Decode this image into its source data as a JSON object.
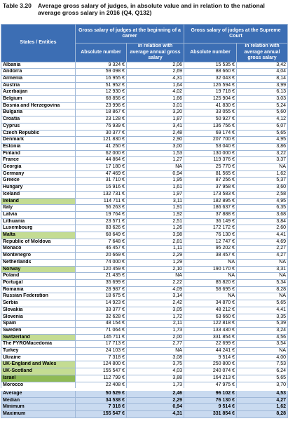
{
  "header": {
    "label": "Table 3.20",
    "title": "Average gross salary of judges, in absolute value and in relation to the national average gross salary in 2016 (Q4, Q132)"
  },
  "table": {
    "columns": {
      "entity": "States / Entities",
      "group1": "Gross salary of judges at the beginning of a career",
      "group2": "Gross salary of judges at the Supreme Court",
      "abs1": "Absolute number",
      "rel1": "in relation with average annual gross salary",
      "abs2": "Absolute number",
      "rel2": "in relation with average annual gross salary"
    },
    "rows": [
      [
        "Albania",
        "9 324 €",
        "2,06",
        "15 535 €",
        "3,42"
      ],
      [
        "Andorra",
        "59 098 €",
        "2,69",
        "88 660 €",
        "4,04"
      ],
      [
        "Armenia",
        "16 955 €",
        "4,31",
        "32 043 €",
        "8,14"
      ],
      [
        "Austria",
        "51 952 €",
        "1,64",
        "126 594 €",
        "3,99"
      ],
      [
        "Azerbaijan",
        "12 930 €",
        "4,02",
        "19 718 €",
        "6,13"
      ],
      [
        "Belgium",
        "68 856 €",
        "1,66",
        "125 904 €",
        "3,03"
      ],
      [
        "Bosnia and Herzegovina",
        "23 996 €",
        "3,01",
        "41 830 €",
        "5,24"
      ],
      [
        "Bulgaria",
        "18 867 €",
        "3,20",
        "33 055 €",
        "5,60"
      ],
      [
        "Croatia",
        "23 128 €",
        "1,87",
        "50 927 €",
        "4,12"
      ],
      [
        "Cyprus",
        "76 939 €",
        "3,41",
        "136 756 €",
        "6,07"
      ],
      [
        "Czech Republic",
        "30 377 €",
        "2,48",
        "69 174 €",
        "5,65"
      ],
      [
        "Denmark",
        "121 830 €",
        "2,90",
        "207 700 €",
        "4,95"
      ],
      [
        "Estonia",
        "41 250 €",
        "3,00",
        "53 040 €",
        "3,86"
      ],
      [
        "Finland",
        "62 000 €",
        "1,53",
        "130 000 €",
        "3,22"
      ],
      [
        "France",
        "44 864 €",
        "1,27",
        "119 376 €",
        "3,37"
      ],
      [
        "Georgia",
        "17 180 €",
        "NA",
        "25 770 €",
        "NA"
      ],
      [
        "Germany",
        "47 469 €",
        "0,94",
        "81 565 €",
        "1,62"
      ],
      [
        "Greece",
        "31 710 €",
        "1,95",
        "87 256 €",
        "5,37"
      ],
      [
        "Hungary",
        "16 916 €",
        "1,61",
        "37 958 €",
        "3,60"
      ],
      [
        "Iceland",
        "132 731 €",
        "1,97",
        "173 583 €",
        "2,58"
      ],
      [
        "Ireland",
        "114 711 €",
        "3,11",
        "182 895 €",
        "4,95"
      ],
      [
        "Italy",
        "56 263 €",
        "1,91",
        "186 637 €",
        "6,35"
      ],
      [
        "Latvia",
        "19 764 €",
        "1,92",
        "37 888 €",
        "3,68"
      ],
      [
        "Lithuania",
        "23 571 €",
        "2,51",
        "36 149 €",
        "3,84"
      ],
      [
        "Luxembourg",
        "83 626 €",
        "1,26",
        "172 172 €",
        "2,60"
      ],
      [
        "Malta",
        "68 649 €",
        "3,98",
        "76 130 €",
        "4,41"
      ],
      [
        "Republic of Moldova",
        "7 648 €",
        "2,81",
        "12 747 €",
        "4,69"
      ],
      [
        "Monaco",
        "46 457 €",
        "1,11",
        "95 202 €",
        "2,27"
      ],
      [
        "Montenegro",
        "20 669 €",
        "2,29",
        "38 457 €",
        "4,27"
      ],
      [
        "Netherlands",
        "74 000 €",
        "1,29",
        "NA",
        "NA"
      ],
      [
        "Norway",
        "120 459 €",
        "2,10",
        "190 170 €",
        "3,31"
      ],
      [
        "Poland",
        "21 435 €",
        "NA",
        "NA",
        "NA"
      ],
      [
        "Portugal",
        "35 699 €",
        "2,22",
        "85 820 €",
        "5,34"
      ],
      [
        "Romania",
        "28 987 €",
        "4,09",
        "58 695 €",
        "8,28"
      ],
      [
        "Russian Federation",
        "18 675 €",
        "3,14",
        "NA",
        "NA"
      ],
      [
        "Serbia",
        "14 923 €",
        "2,42",
        "34 870 €",
        "5,65"
      ],
      [
        "Slovakia",
        "33 377 €",
        "3,05",
        "48 212 €",
        "4,41"
      ],
      [
        "Slovenia",
        "32 628 €",
        "1,72",
        "63 660 €",
        "3,35"
      ],
      [
        "Spain",
        "48 154 €",
        "2,11",
        "122 818 €",
        "5,39"
      ],
      [
        "Sweden",
        "71 064 €",
        "1,73",
        "133 430 €",
        "3,24"
      ],
      [
        "Switzerland",
        "145 711 €",
        "2,00",
        "331 854 €",
        "4,56"
      ],
      [
        "The FYROMacedonia",
        "17 713 €",
        "2,77",
        "22 699 €",
        "3,54"
      ],
      [
        "Turkey",
        "24 103 €",
        "NA",
        "44 241 €",
        "NA"
      ],
      [
        "Ukraine",
        "7 318 €",
        "3,08",
        "9 514 €",
        "4,00"
      ],
      [
        "UK-England and Wales",
        "124 800 €",
        "3,75",
        "250 800 €",
        "7,53"
      ],
      [
        "UK-Scotland",
        "155 547 €",
        "4,03",
        "240 074 €",
        "6,24"
      ],
      [
        "Israel",
        "112 799 €",
        "3,88",
        "164 213 €",
        "5,65"
      ],
      [
        "Morocco",
        "22 408 €",
        "1,73",
        "47 975 €",
        "3,70"
      ]
    ],
    "summary": [
      [
        "Average",
        "50 529 €",
        "2,46",
        "96 102 €",
        "4,53"
      ],
      [
        "Median",
        "34 538 €",
        "2,29",
        "76 130 €",
        "4,27"
      ],
      [
        "Minimum",
        "7 318 €",
        "0,94",
        "9 514 €",
        "1,62"
      ],
      [
        "Maximum",
        "155 547 €",
        "4,31",
        "331 854 €",
        "8,28"
      ]
    ]
  }
}
